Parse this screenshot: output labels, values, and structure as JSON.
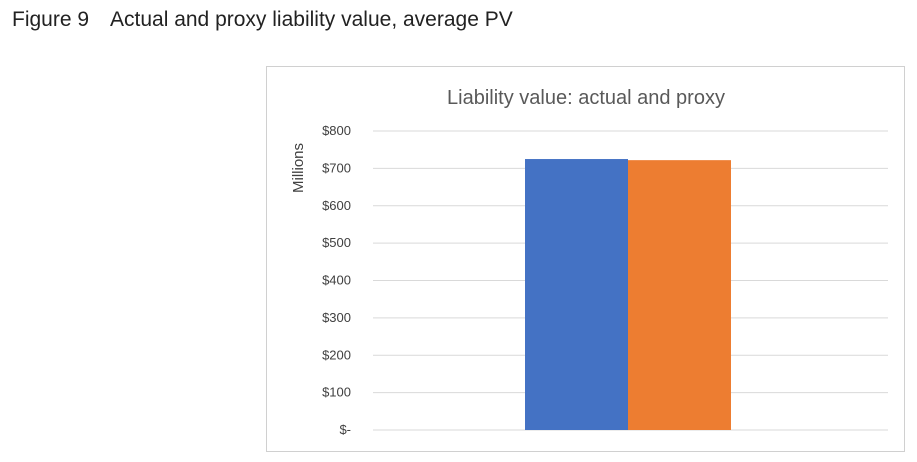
{
  "figure": {
    "number_label": "Figure 9",
    "caption": "Actual and proxy liability value, average PV"
  },
  "chart_data": {
    "type": "bar",
    "title": "Liability value: actual and proxy",
    "xlabel": "",
    "ylabel": "Millions",
    "ylim": [
      0,
      800
    ],
    "yticks": [
      0,
      100,
      200,
      300,
      400,
      500,
      600,
      700,
      800
    ],
    "ytick_labels": [
      "$-",
      "$100",
      "$200",
      "$300",
      "$400",
      "$500",
      "$600",
      "$700",
      "$800"
    ],
    "grid": true,
    "legend": "none",
    "categories": [
      ""
    ],
    "series": [
      {
        "values": [
          725
        ],
        "color": "#4472C4"
      },
      {
        "values": [
          722
        ],
        "color": "#ED7D31"
      }
    ]
  }
}
